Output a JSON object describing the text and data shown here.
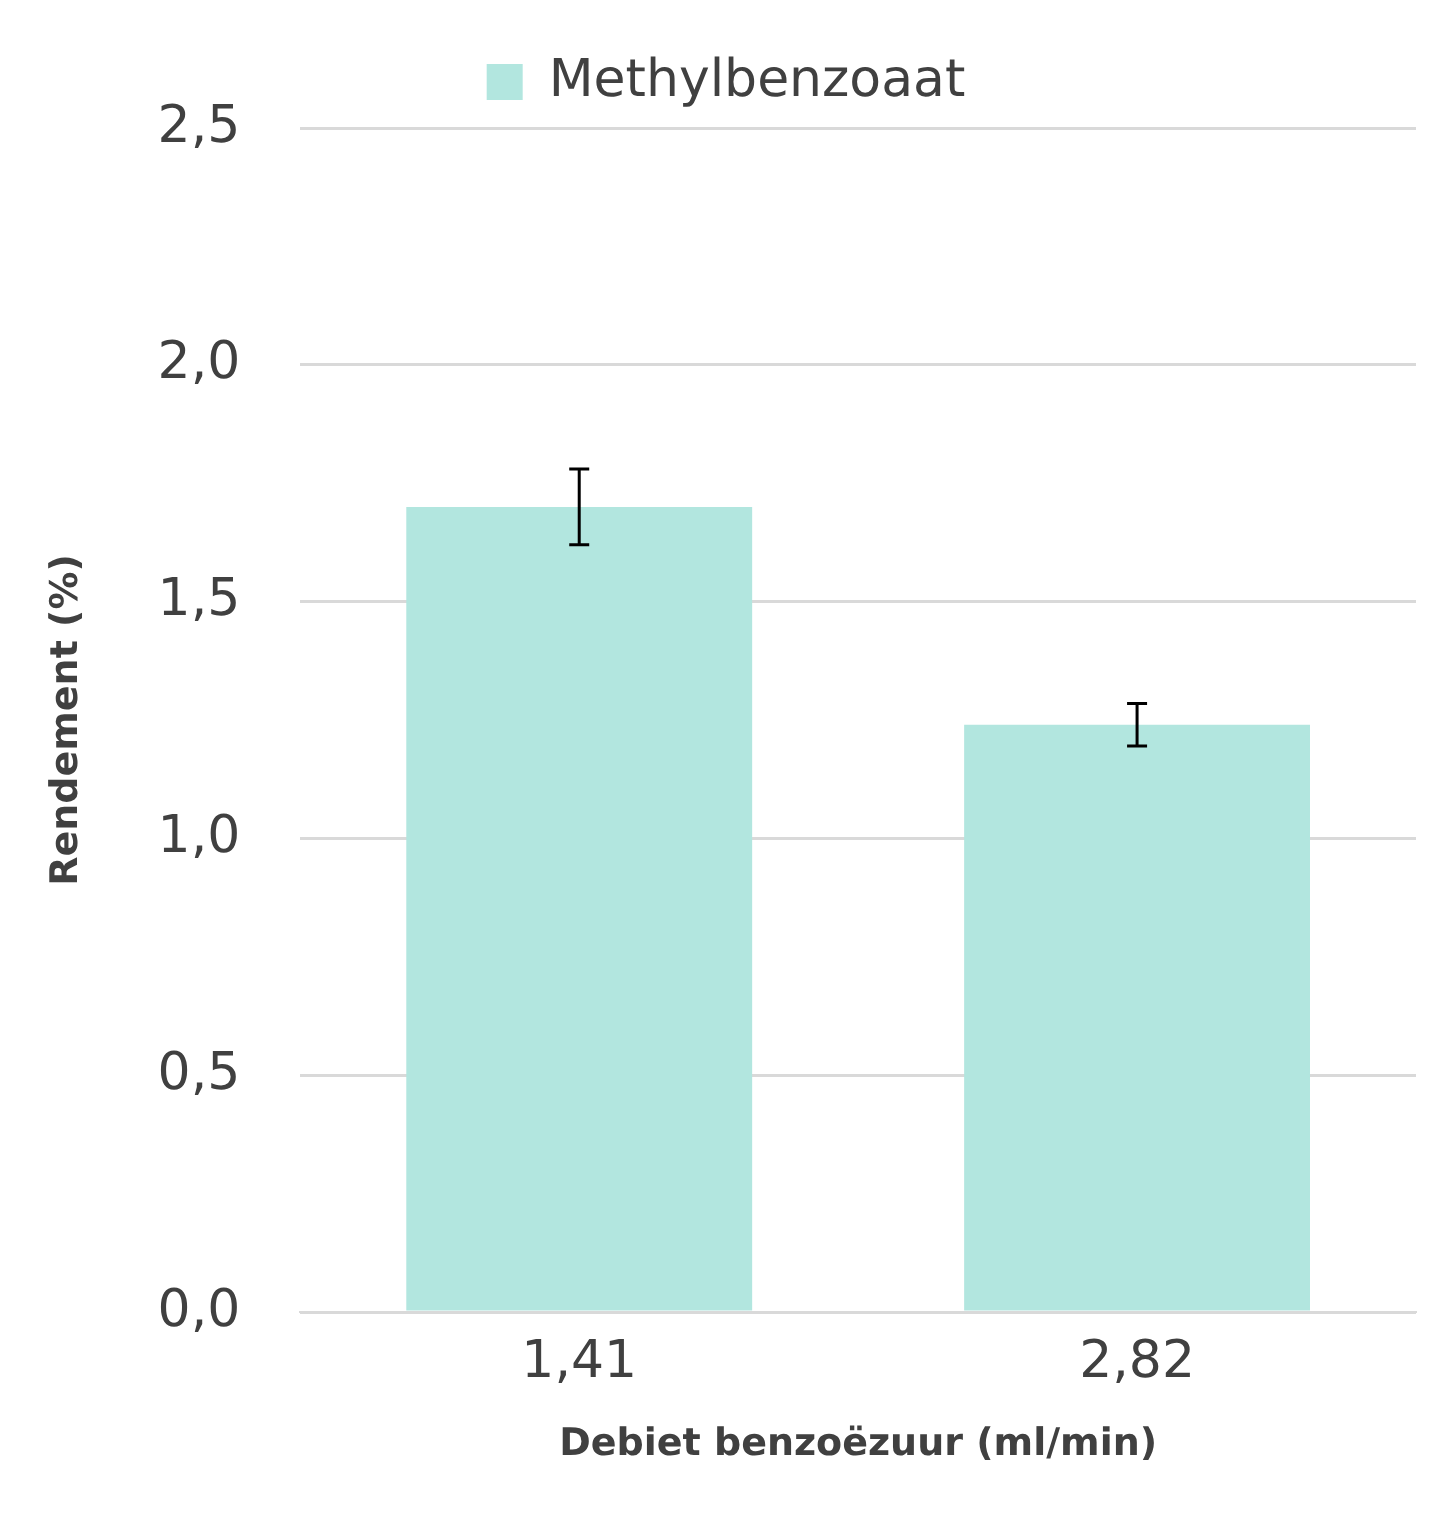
{
  "chart_data": {
    "type": "bar",
    "xlabel": "Debiet benzoëzuur (ml/min)",
    "ylabel": "Rendement (%)",
    "categories": [
      "1,41",
      "2,82"
    ],
    "series": [
      {
        "name": "Methylbenzoaat",
        "color": "#b2e6df",
        "values": [
          1.7,
          1.24
        ],
        "errors": [
          0.08,
          0.045
        ]
      }
    ],
    "ylim": [
      0,
      2.5
    ],
    "yticks": [
      {
        "value": 0,
        "label": "0,0"
      },
      {
        "value": 0.5,
        "label": "0,5"
      },
      {
        "value": 1,
        "label": "1,0"
      },
      {
        "value": 1.5,
        "label": "1,5"
      },
      {
        "value": 2,
        "label": "2,0"
      },
      {
        "value": 2.5,
        "label": "2,5"
      }
    ],
    "grid": "y",
    "legend": "top"
  }
}
